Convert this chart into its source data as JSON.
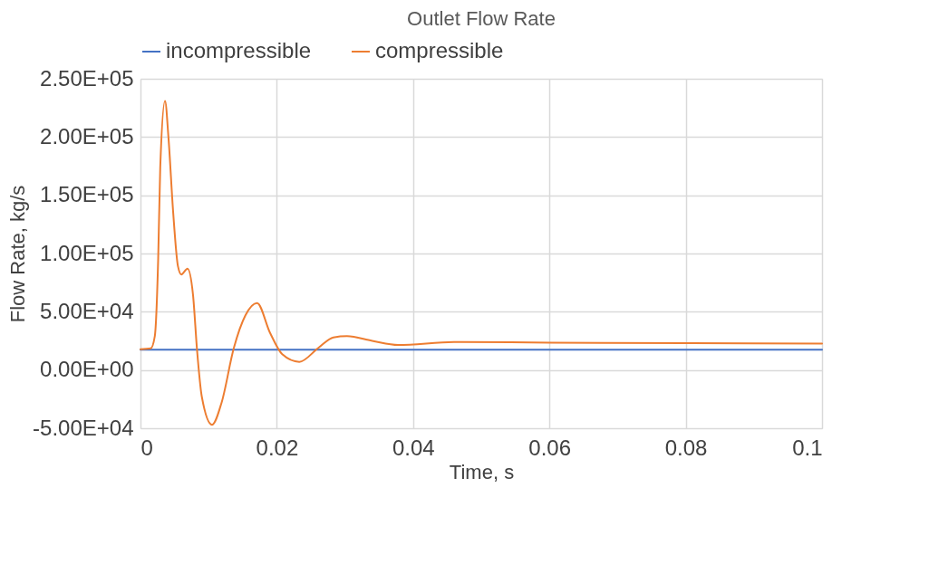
{
  "chart_data": {
    "type": "line",
    "title": "Outlet Flow Rate",
    "xlabel": "Time, s",
    "ylabel": "Flow Rate, kg/s",
    "xlim": [
      0,
      0.1
    ],
    "xticks": [
      0,
      0.02,
      0.04,
      0.06,
      0.08,
      0.1
    ],
    "ylim": [
      -50000,
      250000
    ],
    "yticks": [
      {
        "value": -50000,
        "label": "-5.00E+04"
      },
      {
        "value": 0,
        "label": "0.00E+00"
      },
      {
        "value": 50000,
        "label": "5.00E+04"
      },
      {
        "value": 100000,
        "label": "1.00E+05"
      },
      {
        "value": 150000,
        "label": "1.50E+05"
      },
      {
        "value": 200000,
        "label": "2.00E+05"
      },
      {
        "value": 250000,
        "label": "2.50E+05"
      }
    ],
    "grid": true,
    "legend": "top",
    "marker": "none",
    "line_style": "solid",
    "series": [
      {
        "name": "incompressible",
        "color": "#4472c4",
        "x": [
          0,
          0.1
        ],
        "values": [
          17400,
          17400
        ]
      },
      {
        "name": "compressible",
        "color": "#ed7d31",
        "x": [
          0,
          0.0015,
          0.0021,
          0.0026,
          0.0029,
          0.0036,
          0.0041,
          0.0048,
          0.0055,
          0.006,
          0.0069,
          0.0077,
          0.0083,
          0.009,
          0.0105,
          0.0119,
          0.0137,
          0.0154,
          0.0171,
          0.019,
          0.0208,
          0.0233,
          0.0261,
          0.0283,
          0.0303,
          0.034,
          0.0378,
          0.046,
          0.06,
          0.08,
          0.1
        ],
        "values": [
          17900,
          18500,
          29000,
          96000,
          174000,
          231000,
          200000,
          135000,
          89000,
          82000,
          87000,
          65000,
          17000,
          -23000,
          -47000,
          -28000,
          19000,
          47000,
          57500,
          32000,
          13500,
          7000,
          19000,
          28000,
          29000,
          25000,
          21500,
          24000,
          23500,
          23000,
          22700
        ]
      }
    ]
  }
}
